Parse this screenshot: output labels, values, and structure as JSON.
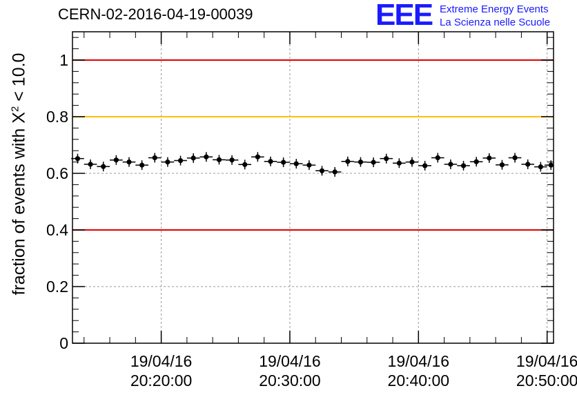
{
  "header": {
    "title": "CERN-02-2016-04-19-00039",
    "logo_mark": "EEE",
    "logo_line1": "Extreme Energy Events",
    "logo_line2": "La Scienza nelle Scuole"
  },
  "chart_data": {
    "type": "scatter",
    "title": "CERN-02-2016-04-19-00039",
    "ylabel_prefix": "fraction of events with",
    "ylabel_symbol": "X",
    "ylabel_sup": "2",
    "ylabel_suffix": " < 10.0",
    "ylim": [
      0,
      1.1
    ],
    "xlim_minutes": [
      13.1,
      50.5
    ],
    "yticks": [
      0,
      0.2,
      0.4,
      0.6,
      0.8,
      1
    ],
    "ytick_labels": [
      "0",
      "0.2",
      "0.4",
      "0.6",
      "0.8",
      "1"
    ],
    "xticks": [
      {
        "minutes": 20,
        "date": "19/04/16",
        "time": "20:20:00"
      },
      {
        "minutes": 30,
        "date": "19/04/16",
        "time": "20:30:00"
      },
      {
        "minutes": 40,
        "date": "19/04/16",
        "time": "20:40:00"
      },
      {
        "minutes": 50,
        "date": "19/04/16",
        "time": "20:50:00"
      }
    ],
    "grid": true,
    "reference_lines": [
      {
        "y": 1.0,
        "color": "#e00000"
      },
      {
        "y": 0.8,
        "color": "#ffc000"
      },
      {
        "y": 0.4,
        "color": "#e00000"
      }
    ],
    "series": [
      {
        "marker_color": "#000000",
        "x_minutes": [
          13.5,
          14.5,
          15.5,
          16.5,
          17.5,
          18.5,
          19.5,
          20.5,
          21.5,
          22.5,
          23.5,
          24.5,
          25.5,
          26.5,
          27.5,
          28.5,
          29.5,
          30.5,
          31.5,
          32.5,
          33.5,
          34.5,
          35.5,
          36.5,
          37.5,
          38.5,
          39.5,
          40.5,
          41.5,
          42.5,
          43.5,
          44.5,
          45.5,
          46.5,
          47.5,
          48.5,
          49.5,
          50.3
        ],
        "values": [
          0.652,
          0.632,
          0.624,
          0.647,
          0.64,
          0.629,
          0.655,
          0.64,
          0.645,
          0.654,
          0.658,
          0.648,
          0.647,
          0.631,
          0.658,
          0.642,
          0.639,
          0.634,
          0.629,
          0.609,
          0.605,
          0.642,
          0.64,
          0.639,
          0.652,
          0.636,
          0.64,
          0.627,
          0.655,
          0.632,
          0.627,
          0.641,
          0.654,
          0.63,
          0.655,
          0.632,
          0.623,
          0.629
        ]
      }
    ]
  }
}
